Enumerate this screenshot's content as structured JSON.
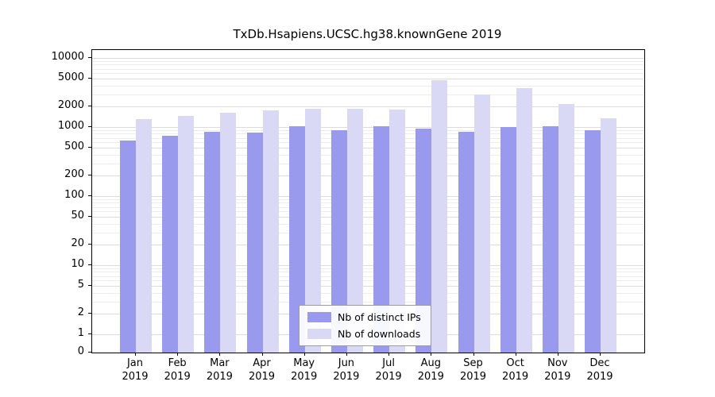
{
  "chart_data": {
    "type": "bar",
    "title": "TxDb.Hsapiens.UCSC.hg38.knownGene 2019",
    "categories": [
      "Jan",
      "Feb",
      "Mar",
      "Apr",
      "May",
      "Jun",
      "Jul",
      "Aug",
      "Sep",
      "Oct",
      "Nov",
      "Dec"
    ],
    "x_year": "2019",
    "series": [
      {
        "name": "Nb of distinct IPs",
        "color": "#9999ee",
        "values": [
          640,
          750,
          860,
          830,
          1020,
          890,
          1020,
          940,
          860,
          990,
          1040,
          900
        ]
      },
      {
        "name": "Nb of downloads",
        "color": "#d9d9f6",
        "values": [
          1300,
          1450,
          1600,
          1750,
          1850,
          1850,
          1800,
          4800,
          3000,
          3700,
          2150,
          1350
        ]
      }
    ],
    "y_scale": "symlog",
    "y_ticks": [
      0,
      1,
      2,
      5,
      10,
      20,
      50,
      100,
      200,
      500,
      1000,
      2000,
      5000,
      10000
    ],
    "ylim": [
      0,
      10000
    ],
    "grid": "horizontal",
    "legend_position": "lower-center-inside"
  }
}
